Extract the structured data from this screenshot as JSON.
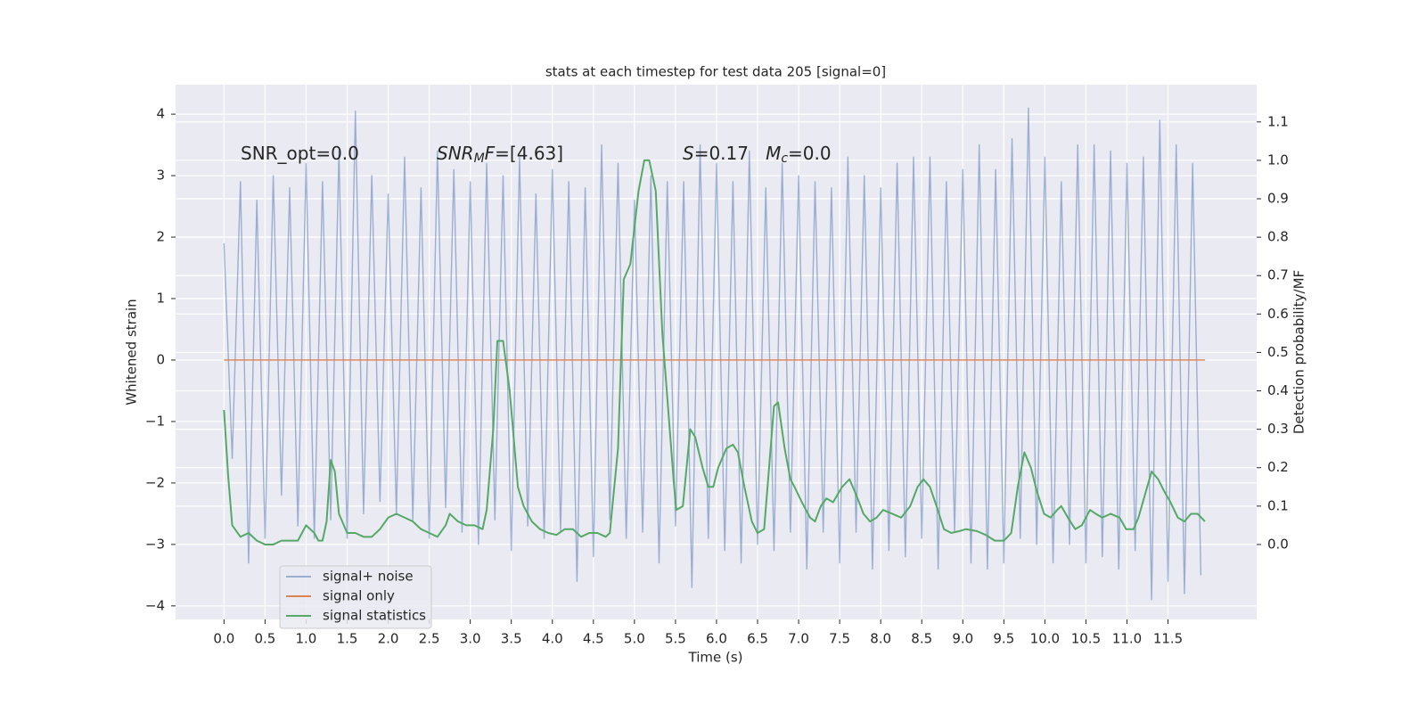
{
  "chart_data": {
    "type": "line",
    "title": "stats at each timestep for test data 205 [signal=0]",
    "xlabel": "Time (s)",
    "ylabel": "Whitened strain",
    "y2label": "Detection probability/MF",
    "background": "#eaeaf2",
    "grid": true,
    "legend": "lower left",
    "annotations": [
      [
        {
          "text": "SNR_opt=0.0"
        }
      ],
      [
        {
          "text": "SNR",
          "style": "italic"
        },
        {
          "text": "M",
          "style": "sub"
        },
        {
          "text": "F",
          "style": "italic"
        },
        {
          "text": "=[4.63]"
        }
      ],
      [
        {
          "text": "S",
          "style": "italic"
        },
        {
          "text": "=0.17   "
        },
        {
          "text": "M",
          "style": "italic"
        },
        {
          "text": "c",
          "style": "sub"
        },
        {
          "text": "=0.0"
        }
      ]
    ],
    "xlim": [
      -0.59,
      12.58
    ],
    "ylim": [
      -4.22,
      4.48
    ],
    "y2lim": [
      -0.195,
      1.197
    ],
    "xticks": [
      {
        "value": 0,
        "label": "0.0"
      },
      0.5,
      {
        "value": 1,
        "label": "1.0"
      },
      1.5,
      {
        "value": 2,
        "label": "2.0"
      },
      2.5,
      {
        "value": 3,
        "label": "3.0"
      },
      3.5,
      {
        "value": 4,
        "label": "4.0"
      },
      4.5,
      {
        "value": 5,
        "label": "5.0"
      },
      5.5,
      {
        "value": 6,
        "label": "6.0"
      },
      6.5,
      {
        "value": 7,
        "label": "7.0"
      },
      7.5,
      {
        "value": 8,
        "label": "8.0"
      },
      8.5,
      {
        "value": 9,
        "label": "9.0"
      },
      9.5,
      {
        "value": 10,
        "label": "10.0"
      },
      10.5,
      {
        "value": 11,
        "label": "11.0"
      },
      11.5
    ],
    "yticks": [
      {
        "value": -4,
        "label": "−4"
      },
      {
        "value": -3,
        "label": "−3"
      },
      {
        "value": -2,
        "label": "−2"
      },
      {
        "value": -1,
        "label": "−1"
      },
      0,
      1,
      2,
      3,
      4
    ],
    "y2ticks": [
      {
        "value": 0,
        "label": "0.0"
      },
      0.1,
      0.2,
      0.3,
      0.4,
      0.5,
      0.6,
      0.7,
      0.8,
      0.9,
      {
        "value": 1,
        "label": "1.0"
      },
      1.1
    ],
    "series": [
      {
        "name": "signal+ noise",
        "color": "#4c72b0",
        "opacity": 0.5,
        "x": [
          0,
          0.1,
          0.2,
          0.3,
          0.4,
          0.5,
          0.6,
          0.7,
          0.8,
          0.9,
          1,
          1.1,
          1.2,
          1.3,
          1.4,
          1.5,
          1.6,
          1.7,
          1.8,
          1.9,
          2,
          2.1,
          2.2,
          2.3,
          2.4,
          2.5,
          2.6,
          2.7,
          2.8,
          2.9,
          3,
          3.1,
          3.2,
          3.3,
          3.4,
          3.5,
          3.6,
          3.7,
          3.8,
          3.9,
          4,
          4.1,
          4.2,
          4.3,
          4.4,
          4.5,
          4.6,
          4.7,
          4.8,
          4.9,
          5,
          5.1,
          5.2,
          5.3,
          5.4,
          5.5,
          5.6,
          5.7,
          5.8,
          5.9,
          6,
          6.1,
          6.2,
          6.3,
          6.4,
          6.5,
          6.6,
          6.7,
          6.8,
          6.9,
          7,
          7.1,
          7.2,
          7.3,
          7.4,
          7.5,
          7.6,
          7.7,
          7.8,
          7.9,
          8,
          8.1,
          8.2,
          8.3,
          8.4,
          8.5,
          8.6,
          8.7,
          8.8,
          8.9,
          9,
          9.1,
          9.2,
          9.3,
          9.4,
          9.5,
          9.6,
          9.7,
          9.8,
          9.9,
          10,
          10.1,
          10.2,
          10.3,
          10.4,
          10.5,
          10.6,
          10.7,
          10.8,
          10.9,
          11,
          11.1,
          11.2,
          11.3,
          11.4,
          11.5,
          11.6,
          11.7,
          11.8,
          11.9
        ],
        "values": [
          1.9,
          -1.6,
          2.9,
          -3.3,
          2.6,
          -2.9,
          3.0,
          -2.2,
          2.8,
          -2.7,
          3.2,
          -2.9,
          2.9,
          -2.6,
          3.4,
          -2.9,
          4.05,
          -2.5,
          3.0,
          -2.3,
          2.7,
          -2.5,
          3.3,
          -2.6,
          2.8,
          -2.9,
          3.4,
          -2.4,
          3.1,
          -2.8,
          2.9,
          -3.0,
          3.2,
          -2.6,
          3.0,
          -3.1,
          3.3,
          -2.7,
          2.7,
          -2.9,
          3.1,
          -2.8,
          2.9,
          -3.6,
          2.8,
          -3.2,
          3.5,
          -2.6,
          3.2,
          -2.9,
          2.6,
          -2.8,
          3.0,
          -3.3,
          2.9,
          -2.7,
          2.9,
          -3.7,
          3.5,
          -2.9,
          3.2,
          -3.1,
          2.9,
          -3.3,
          3.4,
          -3.0,
          2.8,
          -3.1,
          3.2,
          -2.8,
          3.0,
          -3.4,
          2.9,
          -2.8,
          2.8,
          -3.3,
          3.3,
          -2.8,
          3.0,
          -3.4,
          2.8,
          -3.1,
          3.2,
          -3.2,
          3.3,
          -2.9,
          3.3,
          -3.4,
          2.9,
          -2.8,
          3.1,
          -3.3,
          3.5,
          -3.4,
          3.1,
          -3.3,
          3.6,
          -2.9,
          4.1,
          -3.0,
          3.3,
          -3.3,
          2.9,
          -3.0,
          3.5,
          -3.3,
          3.5,
          -3.2,
          3.4,
          -3.4,
          3.2,
          -3.1,
          3.3,
          -3.9,
          3.9,
          -3.6,
          3.5,
          -3.8,
          3.2,
          -3.5
        ]
      },
      {
        "name": "signal only",
        "color": "#dd8452",
        "x": [
          0,
          11.95
        ],
        "values": [
          0,
          0
        ]
      },
      {
        "name": "signal statistics",
        "color": "#55a868",
        "axis": "y2",
        "x": [
          0,
          0.05,
          0.1,
          0.2,
          0.3,
          0.4,
          0.5,
          0.6,
          0.7,
          0.8,
          0.9,
          1.0,
          1.1,
          1.15,
          1.2,
          1.25,
          1.3,
          1.35,
          1.4,
          1.5,
          1.6,
          1.7,
          1.8,
          1.9,
          2.0,
          2.1,
          2.2,
          2.3,
          2.4,
          2.5,
          2.6,
          2.7,
          2.75,
          2.85,
          2.95,
          3.05,
          3.15,
          3.2,
          3.28,
          3.33,
          3.4,
          3.48,
          3.58,
          3.65,
          3.75,
          3.85,
          3.95,
          4.05,
          4.15,
          4.25,
          4.35,
          4.45,
          4.55,
          4.65,
          4.7,
          4.8,
          4.87,
          4.95,
          5.05,
          5.12,
          5.18,
          5.26,
          5.34,
          5.48,
          5.51,
          5.59,
          5.68,
          5.74,
          5.83,
          5.9,
          5.96,
          6.02,
          6.12,
          6.2,
          6.26,
          6.34,
          6.43,
          6.5,
          6.58,
          6.64,
          6.7,
          6.75,
          6.83,
          6.9,
          6.95,
          7.04,
          7.14,
          7.2,
          7.27,
          7.34,
          7.42,
          7.53,
          7.62,
          7.7,
          7.79,
          7.87,
          7.95,
          8.03,
          8.14,
          8.25,
          8.36,
          8.45,
          8.52,
          8.6,
          8.68,
          8.77,
          8.86,
          8.96,
          9.04,
          9.17,
          9.28,
          9.39,
          9.5,
          9.59,
          9.67,
          9.75,
          9.83,
          9.9,
          9.99,
          10.07,
          10.15,
          10.2,
          10.28,
          10.37,
          10.45,
          10.55,
          10.62,
          10.7,
          10.8,
          10.91,
          10.99,
          11.08,
          11.14,
          11.22,
          11.3,
          11.38,
          11.45,
          11.53,
          11.62,
          11.7,
          11.78,
          11.86,
          11.95
        ],
        "values": [
          0.35,
          0.18,
          0.05,
          0.02,
          0.03,
          0.01,
          0.0,
          0.0,
          0.01,
          0.01,
          0.01,
          0.05,
          0.03,
          0.01,
          0.01,
          0.06,
          0.22,
          0.19,
          0.08,
          0.03,
          0.03,
          0.02,
          0.02,
          0.04,
          0.07,
          0.08,
          0.07,
          0.06,
          0.04,
          0.03,
          0.02,
          0.05,
          0.08,
          0.06,
          0.05,
          0.05,
          0.04,
          0.09,
          0.3,
          0.53,
          0.53,
          0.4,
          0.15,
          0.1,
          0.06,
          0.04,
          0.03,
          0.025,
          0.04,
          0.04,
          0.02,
          0.03,
          0.03,
          0.02,
          0.03,
          0.25,
          0.69,
          0.73,
          0.92,
          1.0,
          1.0,
          0.92,
          0.55,
          0.16,
          0.09,
          0.1,
          0.3,
          0.28,
          0.2,
          0.15,
          0.15,
          0.2,
          0.25,
          0.26,
          0.24,
          0.15,
          0.06,
          0.03,
          0.04,
          0.2,
          0.36,
          0.37,
          0.25,
          0.17,
          0.15,
          0.11,
          0.07,
          0.06,
          0.1,
          0.12,
          0.11,
          0.15,
          0.17,
          0.13,
          0.08,
          0.06,
          0.07,
          0.09,
          0.08,
          0.07,
          0.1,
          0.15,
          0.17,
          0.15,
          0.1,
          0.04,
          0.03,
          0.035,
          0.04,
          0.035,
          0.025,
          0.01,
          0.01,
          0.03,
          0.15,
          0.24,
          0.2,
          0.14,
          0.08,
          0.07,
          0.09,
          0.1,
          0.07,
          0.04,
          0.05,
          0.09,
          0.08,
          0.07,
          0.08,
          0.07,
          0.04,
          0.04,
          0.07,
          0.13,
          0.19,
          0.17,
          0.14,
          0.11,
          0.07,
          0.06,
          0.08,
          0.08,
          0.06
        ]
      }
    ]
  }
}
